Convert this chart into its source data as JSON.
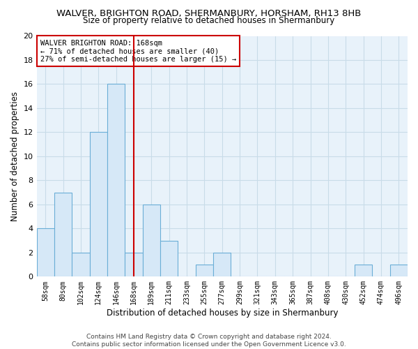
{
  "title": "WALVER, BRIGHTON ROAD, SHERMANBURY, HORSHAM, RH13 8HB",
  "subtitle": "Size of property relative to detached houses in Shermanbury",
  "xlabel": "Distribution of detached houses by size in Shermanbury",
  "ylabel": "Number of detached properties",
  "categories": [
    "58sqm",
    "80sqm",
    "102sqm",
    "124sqm",
    "146sqm",
    "168sqm",
    "189sqm",
    "211sqm",
    "233sqm",
    "255sqm",
    "277sqm",
    "299sqm",
    "321sqm",
    "343sqm",
    "365sqm",
    "387sqm",
    "408sqm",
    "430sqm",
    "452sqm",
    "474sqm",
    "496sqm"
  ],
  "values": [
    4,
    7,
    2,
    12,
    16,
    2,
    6,
    3,
    0,
    1,
    2,
    0,
    0,
    0,
    0,
    0,
    0,
    0,
    1,
    0,
    1
  ],
  "bar_color": "#d6e8f7",
  "bar_edge_color": "#6aaed6",
  "vline_x_idx": 5,
  "vline_color": "#cc0000",
  "annotation_line1": "WALVER BRIGHTON ROAD: 168sqm",
  "annotation_line2": "← 71% of detached houses are smaller (40)",
  "annotation_line3": "27% of semi-detached houses are larger (15) →",
  "annotation_box_color": "#ffffff",
  "annotation_box_edge": "#cc0000",
  "ylim": [
    0,
    20
  ],
  "yticks": [
    0,
    2,
    4,
    6,
    8,
    10,
    12,
    14,
    16,
    18,
    20
  ],
  "footer": "Contains HM Land Registry data © Crown copyright and database right 2024.\nContains public sector information licensed under the Open Government Licence v3.0.",
  "fig_bg_color": "#ffffff",
  "plot_bg_color": "#e8f2fa",
  "grid_color": "#c8dce8",
  "title_fontsize": 9.5,
  "subtitle_fontsize": 8.5,
  "tick_fontsize": 7,
  "ylabel_fontsize": 8.5,
  "xlabel_fontsize": 8.5,
  "footer_fontsize": 6.5
}
